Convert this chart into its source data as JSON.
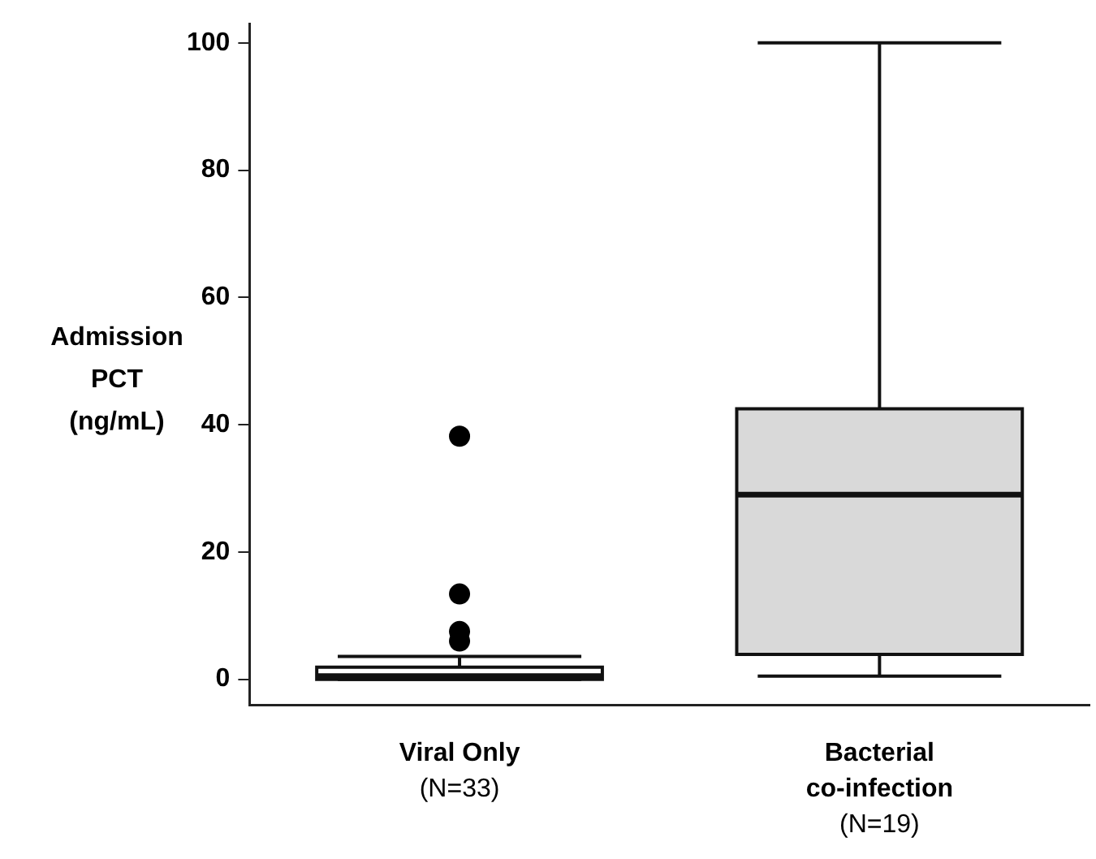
{
  "chart_data": {
    "type": "box",
    "ylabel": "Admission PCT (ng/mL)",
    "categories": [
      "Viral Only\n(N=33)",
      "Bacterial\nco-infection\n(N=19)"
    ],
    "colors": [
      "#ffffff",
      "#d9d9d9"
    ],
    "boxes": [
      {
        "low": 0,
        "q1": 0,
        "median": 0.5,
        "q3": 1.9,
        "high": 3.6,
        "outliers": [
          38.2,
          13.4,
          7.5,
          6.0
        ]
      },
      {
        "low": 0.5,
        "q1": 3.9,
        "median": 29.0,
        "q3": 42.5,
        "high": 100
      }
    ],
    "ylim": [
      -4,
      103
    ],
    "yticks": [
      0,
      20,
      40,
      60,
      80,
      100
    ],
    "grid": false,
    "legend": false
  }
}
